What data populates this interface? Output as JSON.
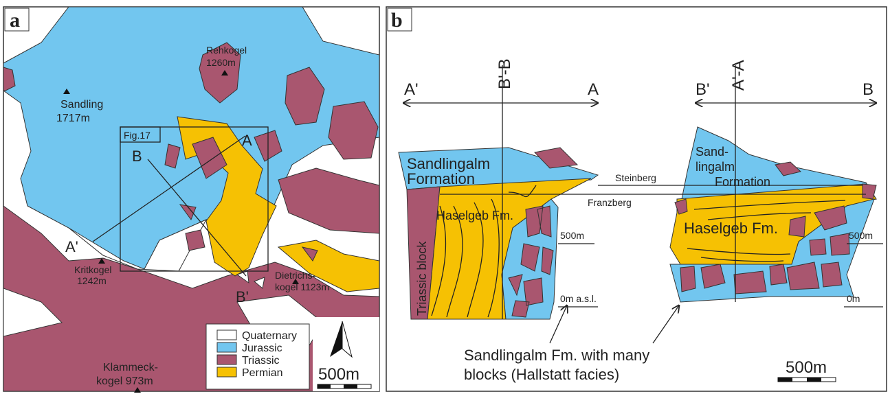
{
  "panel_a": {
    "label": "a",
    "rehkogel": [
      "Rehkogel",
      "1260m"
    ],
    "sandling": [
      "Sandling",
      "1717m"
    ],
    "kritkogel": [
      "Kritkogel",
      "1242m"
    ],
    "dietrichskogel": [
      "Dietrichs-",
      "kogel 1123m"
    ],
    "klammeckkogel": [
      "Klammeck-",
      "kogel 973m"
    ],
    "figure_box": "Fig.17",
    "section_ends": [
      "A",
      "B",
      "A'",
      "B'"
    ],
    "legend": [
      "Quaternary",
      "Jurassic",
      "Triassic",
      "Permian"
    ],
    "scale": "500m"
  },
  "panel_b": {
    "label": "b",
    "left_section": {
      "ends": [
        "A'",
        "A"
      ],
      "crossing": "B'-B",
      "formation": [
        "Sandlingalm",
        "Formation"
      ],
      "block": "Triassic block",
      "haselgeb": "Haselgeb  Fm.",
      "upper_level": "500m",
      "lower_level": "0m a.s.l."
    },
    "right_section": {
      "ends": [
        "B'",
        "B"
      ],
      "crossing": "A'-A",
      "formation": [
        "Sand-",
        "lingalm",
        "Formation"
      ],
      "haselgeb": "Haselgeb Fm.",
      "upper_level": "500m",
      "lower_level": "0m"
    },
    "correlations": [
      "Steinberg",
      "Franzberg"
    ],
    "caption": [
      "Sandlingalm Fm. with many",
      "blocks (Hallstatt facies)"
    ],
    "scale": "500m"
  }
}
